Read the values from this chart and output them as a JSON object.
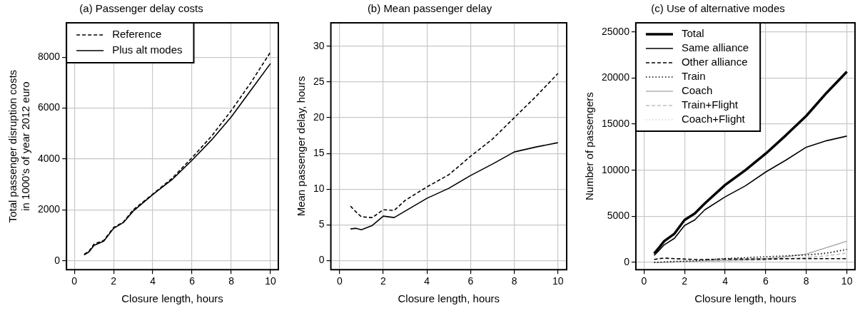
{
  "chart_data": [
    {
      "type": "line",
      "title": "(a) Passenger delay costs",
      "xlabel": "Closure length, hours",
      "ylabel": "Total passenger disruption costs in 1000's of year 2012 euro",
      "x": [
        0.5,
        0.75,
        1,
        1.5,
        2,
        2.5,
        3,
        4,
        5,
        6,
        7,
        8,
        9,
        10
      ],
      "xlim": [
        -0.4,
        10.4
      ],
      "xticks": [
        0,
        2,
        4,
        6,
        8,
        10
      ],
      "ylim": [
        -350,
        9350
      ],
      "yticks": [
        0,
        2000,
        4000,
        6000,
        8000
      ],
      "grid": true,
      "legend": "top left",
      "series": [
        {
          "name": "Reference",
          "color": "#000000",
          "line_style": "dashed",
          "values": [
            250,
            380,
            650,
            800,
            1300,
            1520,
            2000,
            2620,
            3250,
            4050,
            4900,
            5900,
            7000,
            8200
          ]
        },
        {
          "name": "Plus alt modes",
          "color": "#000000",
          "line_style": "solid",
          "values": [
            230,
            350,
            600,
            770,
            1270,
            1500,
            1950,
            2600,
            3200,
            3950,
            4750,
            5650,
            6700,
            7750
          ]
        }
      ]
    },
    {
      "type": "line",
      "title": "(b) Mean passenger delay",
      "xlabel": "Closure length, hours",
      "ylabel": "Mean passenger delay, hours",
      "x": [
        0.5,
        0.75,
        1,
        1.5,
        2,
        2.5,
        3,
        4,
        5,
        6,
        7,
        8,
        9,
        10
      ],
      "xlim": [
        -0.4,
        10.4
      ],
      "xticks": [
        0,
        2,
        4,
        6,
        8,
        10
      ],
      "ylim": [
        -1.3,
        33.3
      ],
      "yticks": [
        0,
        5,
        10,
        15,
        20,
        25,
        30
      ],
      "grid": true,
      "series": [
        {
          "color": "#000000",
          "line_style": "dashed",
          "values": [
            7.6,
            6.8,
            6.1,
            6.0,
            7.1,
            7.0,
            8.4,
            10.3,
            12.0,
            14.6,
            17.0,
            20.0,
            23.0,
            26.2
          ]
        },
        {
          "color": "#000000",
          "line_style": "solid",
          "values": [
            4.4,
            4.5,
            4.3,
            4.9,
            6.2,
            6.0,
            6.9,
            8.7,
            10.1,
            11.9,
            13.5,
            15.2,
            15.9,
            16.5
          ]
        }
      ]
    },
    {
      "type": "line",
      "title": "(c) Use of alternative modes",
      "xlabel": "Closure length, hours",
      "ylabel": "Number of passengers",
      "x": [
        0.5,
        0.75,
        1,
        1.5,
        2,
        2.5,
        3,
        4,
        5,
        6,
        7,
        8,
        9,
        10
      ],
      "xlim": [
        -0.4,
        10.4
      ],
      "xticks": [
        0,
        2,
        4,
        6,
        8,
        10
      ],
      "ylim": [
        -800,
        26000
      ],
      "yticks": [
        0,
        5000,
        10000,
        15000,
        20000,
        25000
      ],
      "grid": true,
      "legend": "top left",
      "series": [
        {
          "name": "Total",
          "color": "#000000",
          "line_style": "solid",
          "values": [
            950,
            1600,
            2300,
            3100,
            4600,
            5300,
            6400,
            8400,
            10000,
            11800,
            13800,
            15900,
            18400,
            20700
          ]
        },
        {
          "name": "Same alliance",
          "color": "#000000",
          "line_style": "solid",
          "values": [
            750,
            1300,
            1900,
            2600,
            4000,
            4600,
            5700,
            7100,
            8300,
            9800,
            11100,
            12500,
            13200,
            13700
          ]
        },
        {
          "name": "Other alliance",
          "color": "#000000",
          "line_style": "dashed",
          "values": [
            300,
            400,
            450,
            400,
            350,
            300,
            300,
            350,
            350,
            350,
            400,
            400,
            400,
            400
          ]
        },
        {
          "name": "Train",
          "color": "#000000",
          "line_style": "dotted",
          "values": [
            0,
            0,
            50,
            100,
            100,
            150,
            250,
            400,
            500,
            600,
            700,
            800,
            1000,
            1400
          ]
        },
        {
          "name": "Coach",
          "color": "#b0b0b0",
          "line_style": "solid",
          "values": [
            0,
            0,
            0,
            50,
            100,
            100,
            150,
            200,
            300,
            400,
            600,
            900,
            1600,
            2300
          ]
        },
        {
          "name": "Train+Flight",
          "color": "#c0c0c0",
          "line_style": "dashed",
          "values": [
            0,
            0,
            0,
            0,
            50,
            50,
            100,
            150,
            200,
            250,
            350,
            500,
            700,
            1000
          ]
        },
        {
          "name": "Coach+Flight",
          "color": "#d0d0d0",
          "line_style": "dotted",
          "values": [
            0,
            0,
            0,
            0,
            50,
            50,
            100,
            150,
            200,
            300,
            400,
            600,
            900,
            1300
          ]
        }
      ]
    }
  ]
}
